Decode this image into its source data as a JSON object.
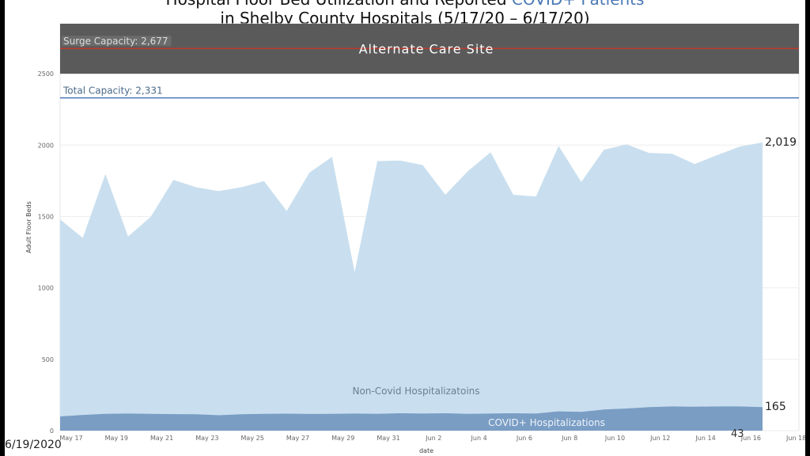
{
  "slide": {
    "title_line1_part1": "Hospital Floor Bed Utilization and Reported ",
    "title_line1_part2": "COVID+ Patients",
    "title_line2": "in Shelby County Hospitals (5/17/20 – 6/17/20)",
    "footer_date": "6/19/2020",
    "page_number": "43"
  },
  "chart_data": {
    "type": "area",
    "ylabel": "Adult Floor Beds",
    "xlabel": "date",
    "ylim": [
      0,
      2850
    ],
    "yticks": [
      0,
      500,
      1000,
      1500,
      2000,
      2500
    ],
    "ytick_labels": [
      "0",
      "500",
      "1000",
      "1500",
      "2000",
      "2500"
    ],
    "xtick_labels": [
      "May 17",
      "May 19",
      "May 21",
      "May 23",
      "May 25",
      "May 27",
      "May 29",
      "May 31",
      "Jun 2",
      "Jun 4",
      "Jun 6",
      "Jun 8",
      "Jun 10",
      "Jun 12",
      "Jun 14",
      "Jun 16",
      "Jun 18"
    ],
    "x": [
      "May 17",
      "May 18",
      "May 19",
      "May 20",
      "May 21",
      "May 22",
      "May 23",
      "May 24",
      "May 25",
      "May 26",
      "May 27",
      "May 28",
      "May 29",
      "May 30",
      "May 31",
      "Jun 1",
      "Jun 2",
      "Jun 3",
      "Jun 4",
      "Jun 5",
      "Jun 6",
      "Jun 7",
      "Jun 8",
      "Jun 9",
      "Jun 10",
      "Jun 11",
      "Jun 12",
      "Jun 13",
      "Jun 14",
      "Jun 15",
      "Jun 16",
      "Jun 17"
    ],
    "series": [
      {
        "name": "COVID+ Hospitalizations",
        "color": "#7a9dc4",
        "values": [
          100,
          110,
          118,
          120,
          118,
          116,
          115,
          108,
          115,
          118,
          119,
          117,
          118,
          120,
          118,
          122,
          120,
          122,
          118,
          120,
          122,
          120,
          135,
          132,
          148,
          155,
          165,
          170,
          168,
          170,
          170,
          165
        ]
      },
      {
        "name": "Non-Covid Hospitalizatoins",
        "color": "#c9dfef",
        "values": [
          1380,
          1240,
          1680,
          1240,
          1380,
          1640,
          1590,
          1570,
          1590,
          1630,
          1420,
          1690,
          1800,
          990,
          1770,
          1770,
          1740,
          1530,
          1700,
          1830,
          1530,
          1520,
          1860,
          1610,
          1820,
          1850,
          1780,
          1770,
          1700,
          1760,
          1820,
          1854
        ]
      }
    ],
    "total_label": "2,019",
    "covid_label": "165",
    "reference_lines": [
      {
        "label": "Surge Capacity: 2,677",
        "value": 2677,
        "color": "#c0392b"
      },
      {
        "label": "Total Capacity: 2,331",
        "value": 2331,
        "color": "#4a78b5"
      }
    ],
    "band": {
      "label": "Alternate Care Site",
      "from": 2500,
      "to": 2850,
      "color": "#5a5a5a"
    },
    "grid": true
  }
}
